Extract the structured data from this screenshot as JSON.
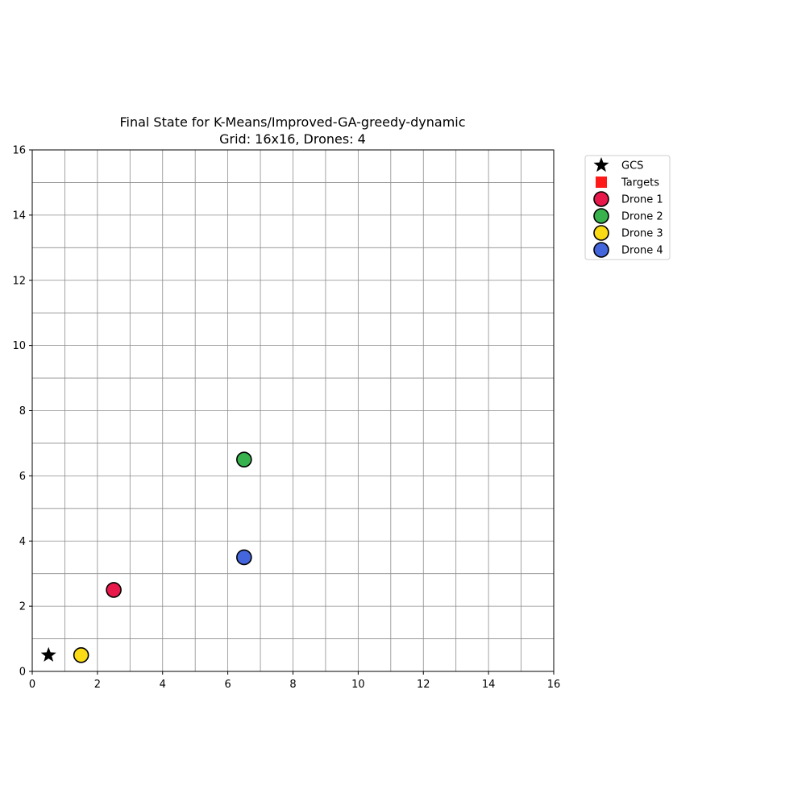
{
  "chart_data": {
    "type": "scatter",
    "title_line1": "Final State for K-Means/Improved-GA-greedy-dynamic",
    "title_line2": "Grid: 16x16, Drones: 4",
    "xlabel": "",
    "ylabel": "",
    "xlim": [
      0,
      16
    ],
    "ylim": [
      0,
      16
    ],
    "x_ticks": [
      "0",
      "2",
      "4",
      "6",
      "8",
      "10",
      "12",
      "14",
      "16"
    ],
    "y_ticks": [
      "0",
      "2",
      "4",
      "6",
      "8",
      "10",
      "12",
      "14",
      "16"
    ],
    "grid": true,
    "legend_position": "outside-top-right",
    "series": [
      {
        "name": "GCS",
        "marker": "star",
        "color": "#000000",
        "points": [
          [
            0.5,
            0.5
          ]
        ]
      },
      {
        "name": "Targets",
        "marker": "square",
        "color": "#ff1a1a",
        "points": []
      },
      {
        "name": "Drone 1",
        "marker": "circle",
        "color": "#e8194a",
        "points": [
          [
            2.5,
            2.5
          ]
        ]
      },
      {
        "name": "Drone 2",
        "marker": "circle",
        "color": "#37b24d",
        "points": [
          [
            6.5,
            6.5
          ]
        ]
      },
      {
        "name": "Drone 3",
        "marker": "circle",
        "color": "#fadb14",
        "points": [
          [
            1.5,
            0.5
          ]
        ]
      },
      {
        "name": "Drone 4",
        "marker": "circle",
        "color": "#4466dd",
        "points": [
          [
            6.5,
            3.5
          ]
        ]
      }
    ]
  }
}
